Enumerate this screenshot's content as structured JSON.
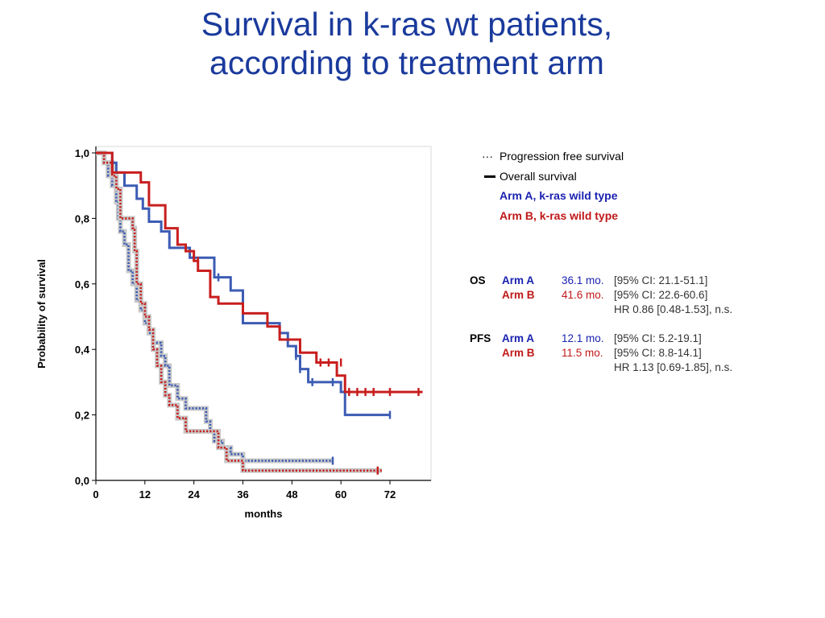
{
  "title_line1": "Survival in k-ras wt patients,",
  "title_line2": "according to treatment arm",
  "legend": {
    "pfs_symbol": "···",
    "pfs": "Progression free survival",
    "os": "Overall survival",
    "arm_a": "Arm A, k-ras wild type",
    "arm_b": "Arm B, k-ras wild type"
  },
  "stats": {
    "os_label": "OS",
    "os_a_arm": "Arm A",
    "os_a_median": "36.1 mo.",
    "os_a_ci": "[95% CI: 21.1-51.1]",
    "os_b_arm": "Arm B",
    "os_b_median": "41.6 mo.",
    "os_b_ci": "[95% CI: 22.6-60.6]",
    "os_hr": "HR 0.86 [0.48-1.53], n.s.",
    "pfs_label": "PFS",
    "pfs_a_arm": "Arm A",
    "pfs_a_median": "12.1 mo.",
    "pfs_a_ci": "[95% CI: 5.2-19.1]",
    "pfs_b_arm": "Arm B",
    "pfs_b_median": "11.5 mo.",
    "pfs_b_ci": "[95% CI: 8.8-14.1]",
    "pfs_hr": "HR 1.13 [0.69-1.85], n.s."
  },
  "colors": {
    "arm_a": "#3c5cb4",
    "arm_b": "#c81e1e",
    "title": "#1a3a9c"
  },
  "chart_data": {
    "type": "line",
    "xlabel": "months",
    "ylabel": "Probability of survival",
    "xlim": [
      0,
      80
    ],
    "ylim": [
      0,
      1
    ],
    "xticks": [
      "0",
      "12",
      "24",
      "36",
      "48",
      "60",
      "72"
    ],
    "xtick_values": [
      0,
      12,
      24,
      36,
      48,
      60,
      72
    ],
    "yticks": [
      "0,0",
      "0,2",
      "0,4",
      "0,6",
      "0,8",
      "1,0"
    ],
    "ytick_values": [
      0,
      0.2,
      0.4,
      0.6,
      0.8,
      1.0
    ],
    "grid": false,
    "series": [
      {
        "name": "Arm A, k-ras wild type — Overall survival",
        "color_key": "arm_a",
        "style": "solid",
        "x": [
          0,
          3,
          4,
          5,
          7,
          10,
          11.5,
          13,
          16,
          18,
          23,
          29,
          33,
          36,
          45,
          47,
          49,
          50,
          52,
          60,
          61,
          72
        ],
        "y": [
          1.0,
          1.0,
          0.97,
          0.94,
          0.9,
          0.86,
          0.83,
          0.79,
          0.76,
          0.71,
          0.68,
          0.62,
          0.58,
          0.48,
          0.45,
          0.41,
          0.38,
          0.34,
          0.3,
          0.27,
          0.2,
          0.2
        ],
        "censored": [
          [
            24,
            0.68
          ],
          [
            30,
            0.62
          ],
          [
            49,
            0.38
          ],
          [
            50,
            0.34
          ],
          [
            53,
            0.3
          ],
          [
            58,
            0.3
          ],
          [
            72,
            0.2
          ]
        ]
      },
      {
        "name": "Arm B, k-ras wild type — Overall survival",
        "color_key": "arm_b",
        "style": "solid",
        "x": [
          0,
          3,
          4,
          8,
          11,
          13,
          17,
          20,
          22,
          24,
          25,
          28,
          30,
          36,
          42,
          45,
          50,
          54,
          59,
          61,
          80
        ],
        "y": [
          1.0,
          1.0,
          0.94,
          0.94,
          0.91,
          0.84,
          0.77,
          0.72,
          0.7,
          0.67,
          0.64,
          0.56,
          0.54,
          0.51,
          0.47,
          0.43,
          0.39,
          0.36,
          0.32,
          0.27,
          0.27
        ],
        "censored": [
          [
            25,
            0.67
          ],
          [
            55,
            0.36
          ],
          [
            57,
            0.36
          ],
          [
            60,
            0.36
          ],
          [
            62,
            0.27
          ],
          [
            64,
            0.27
          ],
          [
            66,
            0.27
          ],
          [
            68,
            0.27
          ],
          [
            72,
            0.27
          ],
          [
            79,
            0.27
          ]
        ]
      },
      {
        "name": "Arm A, k-ras wild type — Progression free survival",
        "color_key": "arm_a",
        "style": "dotted",
        "x": [
          0,
          1,
          2,
          3,
          4,
          5,
          5.5,
          6,
          7,
          8,
          9,
          10,
          11,
          12,
          13,
          14,
          16,
          17,
          18,
          20,
          22,
          27,
          28,
          29,
          31,
          33,
          36,
          58
        ],
        "y": [
          1.0,
          1.0,
          0.97,
          0.93,
          0.9,
          0.85,
          0.8,
          0.76,
          0.72,
          0.64,
          0.6,
          0.55,
          0.52,
          0.48,
          0.45,
          0.42,
          0.38,
          0.35,
          0.29,
          0.25,
          0.22,
          0.18,
          0.15,
          0.12,
          0.1,
          0.08,
          0.06,
          0.06
        ],
        "censored": [
          [
            58,
            0.06
          ]
        ]
      },
      {
        "name": "Arm B, k-ras wild type — Progression free survival",
        "color_key": "arm_b",
        "style": "dotted",
        "x": [
          0,
          1,
          2,
          4,
          5,
          6,
          9,
          9.5,
          10,
          11,
          12,
          13,
          14,
          15,
          16,
          17,
          18,
          20,
          22,
          24,
          30,
          32,
          36,
          70
        ],
        "y": [
          1.0,
          1.0,
          0.97,
          0.93,
          0.89,
          0.8,
          0.77,
          0.7,
          0.6,
          0.54,
          0.5,
          0.46,
          0.4,
          0.35,
          0.3,
          0.26,
          0.23,
          0.19,
          0.15,
          0.15,
          0.1,
          0.06,
          0.03,
          0.03
        ],
        "censored": [
          [
            69,
            0.03
          ]
        ]
      }
    ]
  }
}
